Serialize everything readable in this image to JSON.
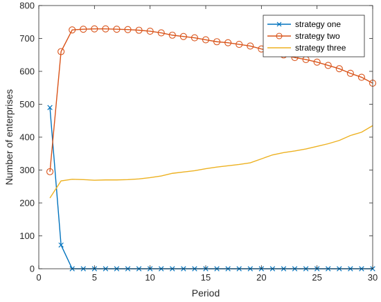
{
  "chart_data": {
    "type": "line",
    "xlabel": "Period",
    "ylabel": "Number of enterprises",
    "xlim": [
      0,
      30
    ],
    "ylim": [
      0,
      800
    ],
    "xticks": [
      0,
      5,
      10,
      15,
      20,
      25,
      30
    ],
    "yticks": [
      0,
      100,
      200,
      300,
      400,
      500,
      600,
      700,
      800
    ],
    "grid": false,
    "legend_position": "top-right",
    "x": [
      1,
      2,
      3,
      4,
      5,
      6,
      7,
      8,
      9,
      10,
      11,
      12,
      13,
      14,
      15,
      16,
      17,
      18,
      19,
      20,
      21,
      22,
      23,
      24,
      25,
      26,
      27,
      28,
      29,
      30
    ],
    "series": [
      {
        "name": "strategy one",
        "color": "#0072BD",
        "marker": "x",
        "values": [
          490,
          72,
          0,
          0,
          0,
          0,
          0,
          0,
          0,
          0,
          0,
          0,
          0,
          0,
          0,
          0,
          0,
          0,
          0,
          0,
          0,
          0,
          0,
          0,
          0,
          0,
          0,
          0,
          0,
          0
        ]
      },
      {
        "name": "strategy two",
        "color": "#D95319",
        "marker": "o",
        "values": [
          295,
          660,
          726,
          728,
          729,
          729,
          728,
          727,
          725,
          722,
          717,
          710,
          706,
          702,
          696,
          690,
          687,
          682,
          677,
          668,
          660,
          650,
          642,
          636,
          628,
          618,
          608,
          594,
          582,
          564
        ]
      },
      {
        "name": "strategy three",
        "color": "#EDB120",
        "marker": "none",
        "values": [
          215,
          267,
          272,
          271,
          269,
          270,
          270,
          271,
          273,
          277,
          282,
          290,
          294,
          298,
          304,
          309,
          313,
          317,
          322,
          334,
          346,
          353,
          358,
          364,
          372,
          380,
          390,
          405,
          415,
          435
        ]
      }
    ]
  }
}
